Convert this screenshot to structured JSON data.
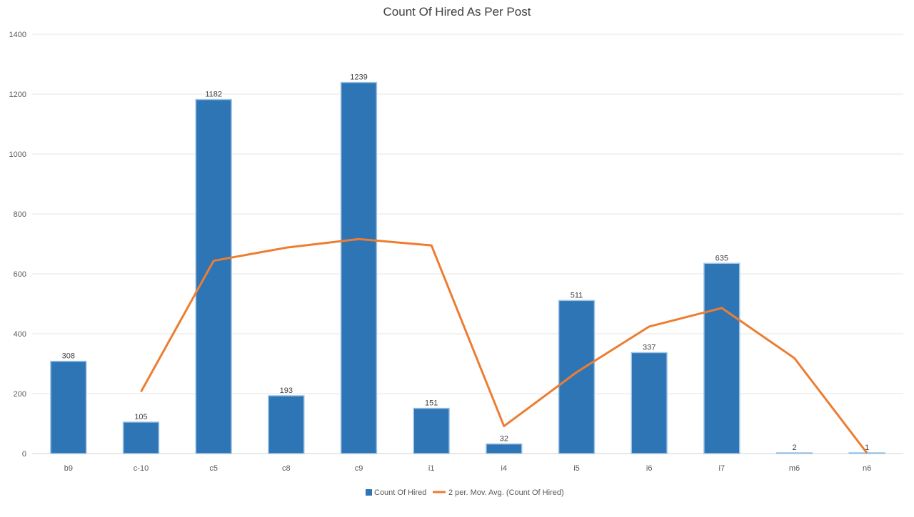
{
  "chart_data": {
    "type": "bar",
    "title": "Count Of Hired As Per Post",
    "xlabel": "",
    "ylabel": "",
    "categories": [
      "b9",
      "c-10",
      "c5",
      "c8",
      "c9",
      "i1",
      "i4",
      "i5",
      "i6",
      "i7",
      "m6",
      "n6"
    ],
    "series": [
      {
        "name": "Count Of Hired",
        "type": "bar",
        "color": "#2E75B6",
        "values": [
          308,
          105,
          1182,
          193,
          1239,
          151,
          32,
          511,
          337,
          635,
          2,
          1
        ],
        "labels": [
          "308",
          "105",
          "1182",
          "193",
          "1239",
          "151",
          "32",
          "511",
          "337",
          "635",
          "2",
          "1"
        ]
      },
      {
        "name": "2 per. Mov. Avg. (Count Of Hired)",
        "type": "line",
        "color": "#ED7D31",
        "values": [
          null,
          206.5,
          643.5,
          687.5,
          716,
          695,
          91.5,
          271.5,
          424,
          486,
          318.5,
          1.5
        ]
      }
    ],
    "ylim": [
      0,
      1400
    ],
    "yticks": [
      0,
      200,
      400,
      600,
      800,
      1000,
      1200,
      1400
    ],
    "grid": true,
    "legend_position": "bottom"
  }
}
